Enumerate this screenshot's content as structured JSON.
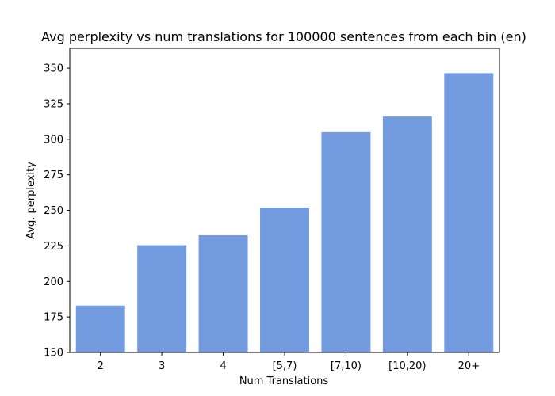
{
  "chart_data": {
    "type": "bar",
    "title": "Avg perplexity vs num translations for 100000 sentences from each bin (en)",
    "xlabel": "Num Translations",
    "ylabel": "Avg. perplexity",
    "categories": [
      "2",
      "3",
      "4",
      "[5,7)",
      "[7,10)",
      "[10,20)",
      "20+"
    ],
    "values": [
      183,
      225.5,
      232.5,
      252,
      305,
      316,
      346.5
    ],
    "ylim": [
      150,
      364
    ],
    "yticks": [
      150,
      175,
      200,
      225,
      250,
      275,
      300,
      325,
      350
    ],
    "grid": false,
    "bar_color": "#729ADF"
  }
}
